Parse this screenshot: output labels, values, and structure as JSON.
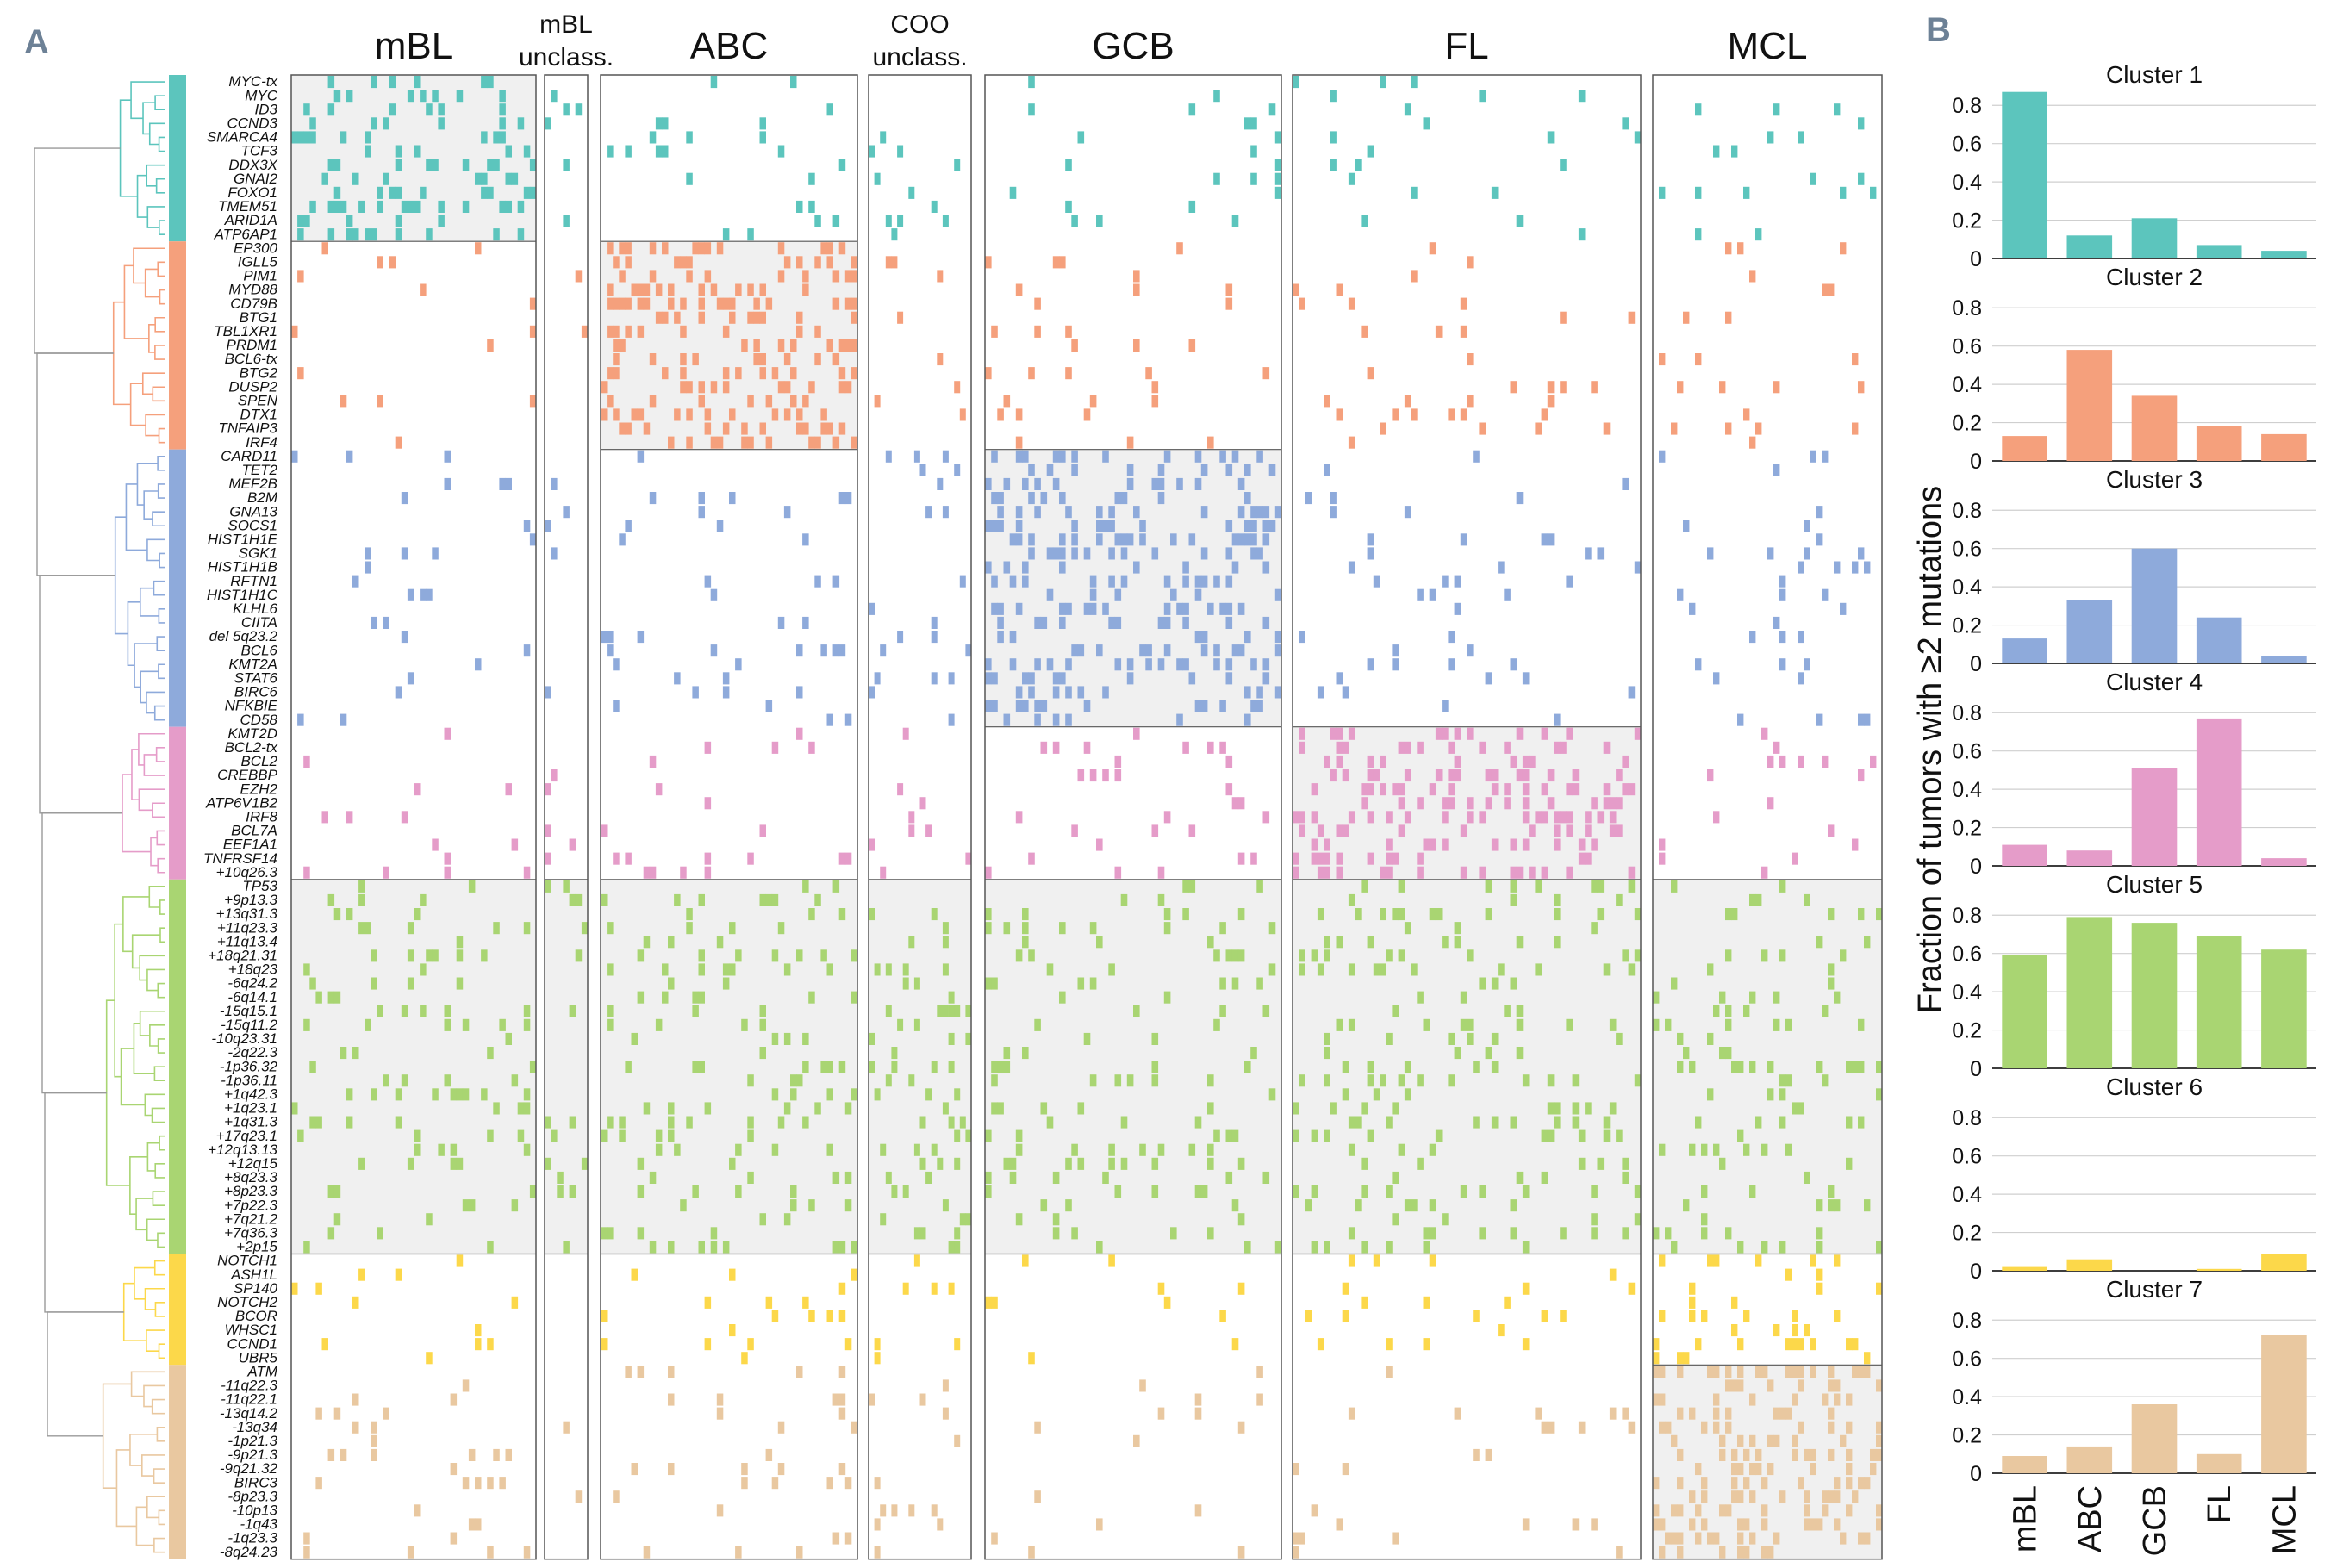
{
  "figure": {
    "panel_a_label": "A",
    "panel_b_label": "B"
  },
  "heatmap": {
    "groups": [
      {
        "title": "mBL",
        "title_lines": [
          "mBL"
        ],
        "n_samples": 40
      },
      {
        "title": "mBL unclass.",
        "title_lines": [
          "mBL",
          "unclass."
        ],
        "n_samples": 7
      },
      {
        "title": "ABC",
        "title_lines": [
          "ABC"
        ],
        "n_samples": 42
      },
      {
        "title": "COO unclass.",
        "title_lines": [
          "COO",
          "unclass."
        ],
        "n_samples": 18
      },
      {
        "title": "GCB",
        "title_lines": [
          "GCB"
        ],
        "n_samples": 48
      },
      {
        "title": "FL",
        "title_lines": [
          "FL"
        ],
        "n_samples": 56
      },
      {
        "title": "MCL",
        "title_lines": [
          "MCL"
        ],
        "n_samples": 38
      }
    ],
    "clusters": [
      {
        "id": 1,
        "color": "#5cc5bd",
        "highlight_group": 0,
        "rows": [
          "MYC-tx",
          "MYC",
          "ID3",
          "CCND3",
          "SMARCA4",
          "TCF3",
          "DDX3X",
          "GNAI2",
          "FOXO1",
          "TMEM51",
          "ARID1A",
          "ATP6AP1"
        ]
      },
      {
        "id": 2,
        "color": "#f5a07c",
        "highlight_group": 2,
        "rows": [
          "EP300",
          "IGLL5",
          "PIM1",
          "MYD88",
          "CD79B",
          "BTG1",
          "TBL1XR1",
          "PRDM1",
          "BCL6-tx",
          "BTG2",
          "DUSP2",
          "SPEN",
          "DTX1",
          "TNFAIP3",
          "IRF4"
        ]
      },
      {
        "id": 3,
        "color": "#8eaadb",
        "highlight_group": 4,
        "rows": [
          "CARD11",
          "TET2",
          "MEF2B",
          "B2M",
          "GNA13",
          "SOCS1",
          "HIST1H1E",
          "SGK1",
          "HIST1H1B",
          "RFTN1",
          "HIST1H1C",
          "KLHL6",
          "CIITA",
          "del 5q23.2",
          "BCL6",
          "KMT2A",
          "STAT6",
          "BIRC6",
          "NFKBIE",
          "CD58"
        ]
      },
      {
        "id": 4,
        "color": "#e59cc9",
        "highlight_group": 5,
        "rows": [
          "KMT2D",
          "BCL2-tx",
          "BCL2",
          "CREBBP",
          "EZH2",
          "ATP6V1B2",
          "IRF8",
          "BCL7A",
          "EEF1A1",
          "TNFRSF14",
          "+10q26.3"
        ]
      },
      {
        "id": 5,
        "color": "#a9d572",
        "highlight_group": -1,
        "rows": [
          "TP53",
          "+9p13.3",
          "+13q31.3",
          "+11q23.3",
          "+11q13.4",
          "+18q21.31",
          "+18q23",
          "-6q24.2",
          "-6q14.1",
          "-15q15.1",
          "-15q11.2",
          "-10q23.31",
          "-2q22.3",
          "-1p36.32",
          "-1p36.11",
          "+1q42.3",
          "+1q23.1",
          "+1q31.3",
          "+17q23.1",
          "+12q13.13",
          "+12q15",
          "+8q23.3",
          "+8p23.3",
          "+7p22.3",
          "+7q21.2",
          "+7q36.3",
          "+2p15"
        ]
      },
      {
        "id": 6,
        "color": "#fcd84a",
        "highlight_group": -2,
        "rows": [
          "NOTCH1",
          "ASH1L",
          "SP140",
          "NOTCH2",
          "BCOR",
          "WHSC1",
          "CCND1",
          "UBR5"
        ]
      },
      {
        "id": 7,
        "color": "#e9c8a0",
        "highlight_group": 6,
        "rows": [
          "ATM",
          "-11q22.3",
          "-11q22.1",
          "-13q14.2",
          "-13q34",
          "-1p21.3",
          "-9p21.3",
          "-9q21.32",
          "BIRC3",
          "-8p23.3",
          "-10p13",
          "-1q43",
          "-1q23.3",
          "-8q24.23"
        ]
      }
    ]
  },
  "chart_data": {
    "type": "bar",
    "panel": "B",
    "ylabel": "Fraction of tumors with ≥2 mutations",
    "categories": [
      "mBL",
      "ABC",
      "GCB",
      "FL",
      "MCL"
    ],
    "ylim": [
      0,
      0.9
    ],
    "yticks": [
      0,
      0.2,
      0.4,
      0.6,
      0.8
    ],
    "grid": true,
    "series": [
      {
        "name": "Cluster 1",
        "color": "#5cc5bd",
        "values": [
          0.87,
          0.12,
          0.21,
          0.07,
          0.04
        ]
      },
      {
        "name": "Cluster 2",
        "color": "#f5a07c",
        "values": [
          0.13,
          0.58,
          0.34,
          0.18,
          0.14
        ]
      },
      {
        "name": "Cluster 3",
        "color": "#8eaadb",
        "values": [
          0.13,
          0.33,
          0.6,
          0.24,
          0.04
        ]
      },
      {
        "name": "Cluster 4",
        "color": "#e59cc9",
        "values": [
          0.11,
          0.08,
          0.51,
          0.77,
          0.04
        ]
      },
      {
        "name": "Cluster 5",
        "color": "#a9d572",
        "values": [
          0.59,
          0.79,
          0.76,
          0.69,
          0.62
        ]
      },
      {
        "name": "Cluster 6",
        "color": "#fcd84a",
        "values": [
          0.02,
          0.06,
          0.0,
          0.01,
          0.09
        ]
      },
      {
        "name": "Cluster 7",
        "color": "#e9c8a0",
        "values": [
          0.09,
          0.14,
          0.36,
          0.1,
          0.72
        ]
      }
    ]
  }
}
